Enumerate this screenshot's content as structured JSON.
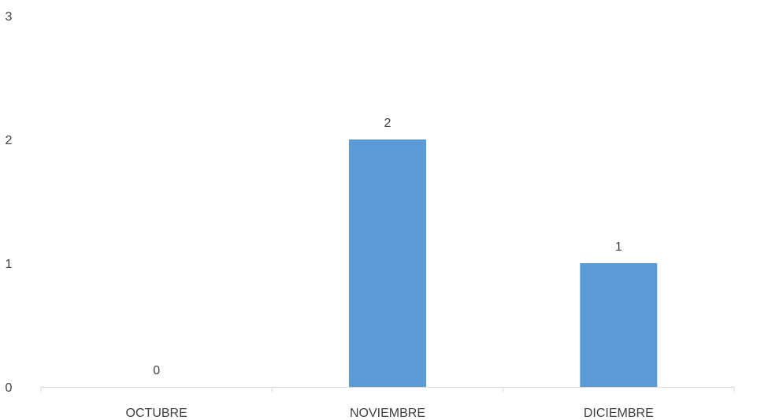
{
  "colors": {
    "bar": "#5b9bd5",
    "axis": "#d9d9d9",
    "text": "#404040"
  },
  "chart_data": {
    "type": "bar",
    "categories": [
      "OCTUBRE",
      "NOVIEMBRE",
      "DICIEMBRE"
    ],
    "values": [
      0,
      2,
      1
    ],
    "data_labels": [
      "0",
      "2",
      "1"
    ],
    "y_ticks": [
      "0",
      "1",
      "2",
      "3"
    ],
    "ylim": [
      0,
      3
    ],
    "grid": false,
    "legend": "none",
    "title": "",
    "xlabel": "",
    "ylabel": ""
  }
}
